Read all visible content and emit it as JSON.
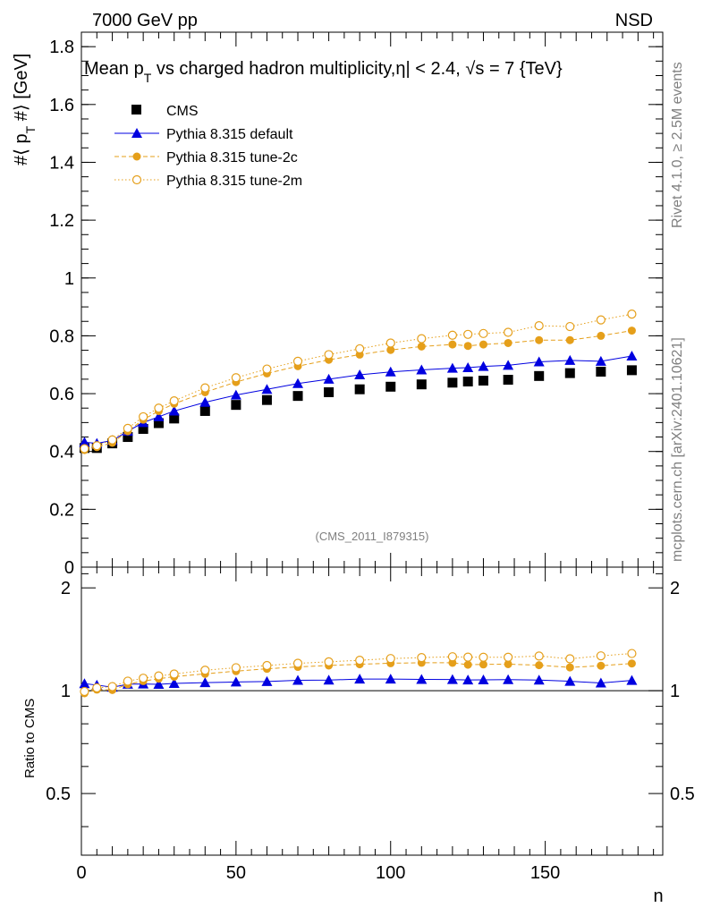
{
  "header": {
    "energy_label": "7000 GeV pp",
    "process_label": "NSD",
    "title_prefix": "Mean p",
    "title_sub": "T",
    "title_suffix": " vs charged hadron multiplicity,",
    "title_eta": "η| < 2.4, ",
    "title_sqrt": "√",
    "title_s": "s = 7 {TeV}",
    "analysis_id": "(CMS_2011_I879315)",
    "side_rivet": "Rivet 4.1.0, ≥ 2.5M events",
    "side_mcplots": "mcplots.cern.ch [arXiv:2401.10621]"
  },
  "axes": {
    "ylabel_prefix": "#⟨ p",
    "ylabel_sub": "T",
    "ylabel_suffix": " #⟩ [GeV]",
    "ratio_ylabel": "Ratio to CMS",
    "xlabel": "n"
  },
  "legend": {
    "cms": "CMS",
    "default": "Pythia 8.315 default",
    "tune2c": "Pythia 8.315 tune-2c",
    "tune2m": "Pythia 8.315 tune-2m"
  },
  "colors": {
    "data": "#000000",
    "default": "#0000e0",
    "tune2c": "#e59f1a",
    "tune2m": "#e59f1a"
  },
  "chart_data": {
    "type": "scatter",
    "title": "Mean pT vs charged hadron multiplicity, |η| < 2.4, √s = 7 TeV",
    "xlabel": "n",
    "ylabel": "#⟨ pT #⟩ [GeV]",
    "xlim": [
      0,
      188
    ],
    "ylim": [
      0,
      1.85
    ],
    "ratio_ylim": [
      0.33,
      2.3
    ],
    "main_yticks": [
      0,
      0.2,
      0.4,
      0.6,
      0.8,
      1,
      1.2,
      1.4,
      1.6,
      1.8
    ],
    "main_ytick_labels": [
      "0",
      "0.2",
      "0.4",
      "0.6",
      "0.8",
      "1",
      "1.2",
      "1.4",
      "1.6",
      "1.8"
    ],
    "ratio_yticks": [
      0.5,
      1,
      2
    ],
    "ratio_ytick_labels": [
      "0.5",
      "1",
      "2"
    ],
    "xticks": [
      0,
      50,
      100,
      150
    ],
    "xtick_labels": [
      "0",
      "50",
      "100",
      "150"
    ],
    "series": [
      {
        "name": "CMS",
        "style": "data",
        "x": [
          1,
          5,
          10,
          15,
          20,
          25,
          30,
          40,
          50,
          60,
          70,
          80,
          90,
          100,
          110,
          120,
          125,
          130,
          138,
          148,
          158,
          168,
          178
        ],
        "y": [
          0.412,
          0.412,
          0.428,
          0.45,
          0.478,
          0.498,
          0.514,
          0.54,
          0.561,
          0.578,
          0.592,
          0.605,
          0.615,
          0.624,
          0.632,
          0.638,
          0.642,
          0.645,
          0.648,
          0.661,
          0.671,
          0.676,
          0.681
        ]
      },
      {
        "name": "Pythia 8.315 default",
        "style": "default",
        "x": [
          1,
          5,
          10,
          15,
          20,
          25,
          30,
          40,
          50,
          60,
          70,
          80,
          90,
          100,
          110,
          120,
          125,
          130,
          138,
          148,
          158,
          168,
          178
        ],
        "y": [
          0.432,
          0.428,
          0.438,
          0.47,
          0.5,
          0.52,
          0.54,
          0.57,
          0.595,
          0.615,
          0.635,
          0.65,
          0.665,
          0.675,
          0.682,
          0.688,
          0.69,
          0.694,
          0.698,
          0.71,
          0.715,
          0.712,
          0.73
        ]
      },
      {
        "name": "Pythia 8.315 tune-2c",
        "style": "tune2c",
        "x": [
          1,
          5,
          10,
          15,
          20,
          25,
          30,
          40,
          50,
          60,
          70,
          80,
          90,
          100,
          110,
          120,
          125,
          130,
          138,
          148,
          158,
          168,
          178
        ],
        "y": [
          0.405,
          0.415,
          0.43,
          0.47,
          0.51,
          0.54,
          0.565,
          0.605,
          0.64,
          0.67,
          0.695,
          0.717,
          0.735,
          0.751,
          0.763,
          0.77,
          0.765,
          0.77,
          0.775,
          0.785,
          0.785,
          0.8,
          0.818
        ]
      },
      {
        "name": "Pythia 8.315 tune-2m",
        "style": "tune2m",
        "x": [
          1,
          5,
          10,
          15,
          20,
          25,
          30,
          40,
          50,
          60,
          70,
          80,
          90,
          100,
          110,
          120,
          125,
          130,
          138,
          148,
          158,
          168,
          178
        ],
        "y": [
          0.41,
          0.42,
          0.44,
          0.48,
          0.52,
          0.55,
          0.575,
          0.62,
          0.655,
          0.685,
          0.712,
          0.735,
          0.755,
          0.775,
          0.79,
          0.802,
          0.805,
          0.808,
          0.812,
          0.835,
          0.832,
          0.855,
          0.875
        ]
      }
    ]
  }
}
